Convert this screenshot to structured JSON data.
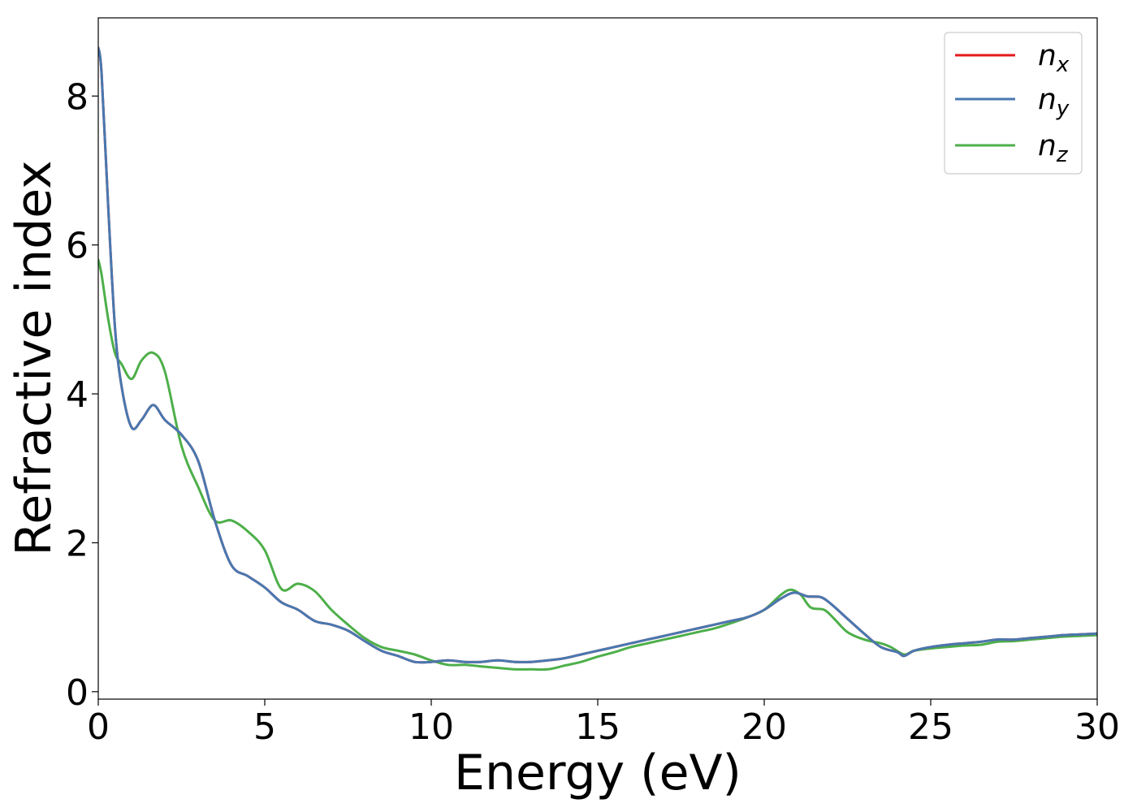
{
  "chart_data": {
    "type": "line",
    "title": "",
    "xlabel": "Energy (eV)",
    "ylabel": "Refractive index",
    "xlim": [
      0,
      30
    ],
    "ylim": [
      -0.1,
      9.05
    ],
    "xticks": [
      0,
      5,
      10,
      15,
      20,
      25,
      30
    ],
    "yticks": [
      0,
      2,
      4,
      6,
      8
    ],
    "grid": false,
    "legend_position": "top-right",
    "series": [
      {
        "name": "n_x",
        "legend_base": "n",
        "legend_sub": "x",
        "color": "#e41a1c",
        "x": [
          0,
          0.1,
          0.3,
          0.5,
          0.7,
          1.0,
          1.3,
          1.65,
          2.0,
          2.5,
          3.0,
          3.5,
          4.0,
          4.5,
          5.0,
          5.5,
          6.0,
          6.5,
          7.0,
          7.5,
          8.0,
          8.5,
          9.0,
          9.5,
          10.0,
          10.5,
          11.0,
          11.5,
          12.0,
          12.5,
          13.0,
          13.5,
          14.0,
          14.5,
          15.0,
          15.5,
          16.0,
          16.5,
          17.0,
          17.5,
          18.0,
          18.5,
          19.0,
          19.5,
          20.0,
          20.5,
          20.9,
          21.3,
          21.7,
          22.0,
          22.5,
          23.0,
          23.5,
          24.0,
          24.2,
          24.5,
          25.0,
          25.5,
          26.0,
          26.5,
          27.0,
          27.5,
          28.0,
          28.5,
          29.0,
          29.5,
          30.0
        ],
        "y": [
          8.65,
          8.3,
          6.5,
          4.9,
          4.1,
          3.55,
          3.65,
          3.85,
          3.65,
          3.45,
          3.1,
          2.3,
          1.7,
          1.55,
          1.4,
          1.2,
          1.1,
          0.95,
          0.9,
          0.82,
          0.68,
          0.55,
          0.48,
          0.4,
          0.4,
          0.42,
          0.4,
          0.4,
          0.42,
          0.4,
          0.4,
          0.42,
          0.45,
          0.5,
          0.55,
          0.6,
          0.65,
          0.7,
          0.75,
          0.8,
          0.85,
          0.9,
          0.95,
          1.0,
          1.1,
          1.25,
          1.33,
          1.28,
          1.27,
          1.18,
          0.98,
          0.78,
          0.6,
          0.53,
          0.48,
          0.55,
          0.6,
          0.63,
          0.65,
          0.67,
          0.7,
          0.7,
          0.72,
          0.74,
          0.76,
          0.77,
          0.78
        ]
      },
      {
        "name": "n_y",
        "legend_base": "n",
        "legend_sub": "y",
        "color": "#4878b0",
        "x": [
          0,
          0.1,
          0.3,
          0.5,
          0.7,
          1.0,
          1.3,
          1.65,
          2.0,
          2.5,
          3.0,
          3.5,
          4.0,
          4.5,
          5.0,
          5.5,
          6.0,
          6.5,
          7.0,
          7.5,
          8.0,
          8.5,
          9.0,
          9.5,
          10.0,
          10.5,
          11.0,
          11.5,
          12.0,
          12.5,
          13.0,
          13.5,
          14.0,
          14.5,
          15.0,
          15.5,
          16.0,
          16.5,
          17.0,
          17.5,
          18.0,
          18.5,
          19.0,
          19.5,
          20.0,
          20.5,
          20.9,
          21.3,
          21.7,
          22.0,
          22.5,
          23.0,
          23.5,
          24.0,
          24.2,
          24.5,
          25.0,
          25.5,
          26.0,
          26.5,
          27.0,
          27.5,
          28.0,
          28.5,
          29.0,
          29.5,
          30.0
        ],
        "y": [
          8.65,
          8.3,
          6.5,
          4.9,
          4.1,
          3.55,
          3.65,
          3.85,
          3.65,
          3.45,
          3.1,
          2.3,
          1.7,
          1.55,
          1.4,
          1.2,
          1.1,
          0.95,
          0.9,
          0.82,
          0.68,
          0.55,
          0.48,
          0.4,
          0.4,
          0.42,
          0.4,
          0.4,
          0.42,
          0.4,
          0.4,
          0.42,
          0.45,
          0.5,
          0.55,
          0.6,
          0.65,
          0.7,
          0.75,
          0.8,
          0.85,
          0.9,
          0.95,
          1.0,
          1.1,
          1.25,
          1.33,
          1.28,
          1.27,
          1.18,
          0.98,
          0.78,
          0.6,
          0.53,
          0.48,
          0.55,
          0.6,
          0.63,
          0.65,
          0.67,
          0.7,
          0.7,
          0.72,
          0.74,
          0.76,
          0.77,
          0.78
        ]
      },
      {
        "name": "n_z",
        "legend_base": "n",
        "legend_sub": "z",
        "color": "#4daf4a",
        "x": [
          0,
          0.1,
          0.3,
          0.5,
          0.7,
          1.0,
          1.3,
          1.65,
          2.0,
          2.5,
          3.0,
          3.5,
          4.0,
          4.5,
          5.0,
          5.5,
          6.0,
          6.5,
          7.0,
          7.5,
          8.0,
          8.5,
          9.0,
          9.5,
          10.0,
          10.5,
          11.0,
          11.5,
          12.0,
          12.5,
          13.0,
          13.5,
          14.0,
          14.5,
          15.0,
          15.5,
          16.0,
          16.5,
          17.0,
          17.5,
          18.0,
          18.5,
          19.0,
          19.5,
          20.0,
          20.5,
          20.8,
          21.1,
          21.4,
          21.8,
          22.1,
          22.5,
          23.0,
          23.5,
          23.8,
          24.2,
          24.5,
          25.0,
          25.5,
          26.0,
          26.5,
          27.0,
          27.5,
          28.0,
          28.5,
          29.0,
          29.5,
          30.0
        ],
        "y": [
          5.8,
          5.6,
          5.0,
          4.55,
          4.4,
          4.2,
          4.45,
          4.55,
          4.3,
          3.3,
          2.75,
          2.3,
          2.3,
          2.15,
          1.9,
          1.38,
          1.45,
          1.35,
          1.1,
          0.9,
          0.72,
          0.6,
          0.55,
          0.5,
          0.42,
          0.36,
          0.36,
          0.34,
          0.32,
          0.3,
          0.3,
          0.3,
          0.35,
          0.4,
          0.47,
          0.53,
          0.6,
          0.65,
          0.7,
          0.75,
          0.8,
          0.85,
          0.92,
          1.0,
          1.1,
          1.3,
          1.37,
          1.3,
          1.13,
          1.1,
          0.98,
          0.8,
          0.7,
          0.65,
          0.6,
          0.5,
          0.55,
          0.58,
          0.6,
          0.62,
          0.63,
          0.67,
          0.68,
          0.7,
          0.72,
          0.74,
          0.75,
          0.76
        ]
      }
    ]
  }
}
